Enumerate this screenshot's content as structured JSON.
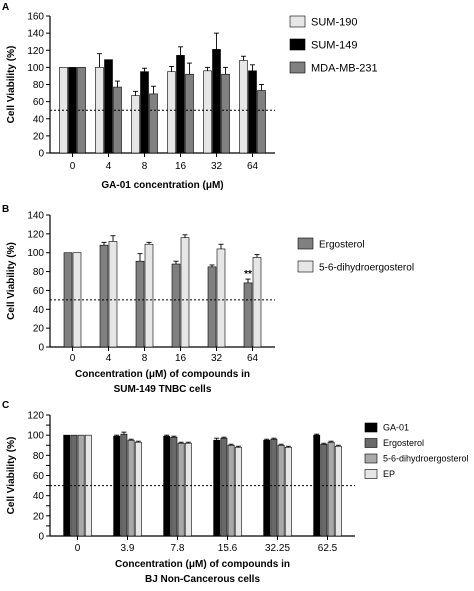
{
  "chart_data": [
    {
      "panel": "A",
      "type": "bar",
      "ylabel": "Cell Viability (%)",
      "xlabel": "GA-01 concentration (μM)",
      "ylim": [
        0,
        160
      ],
      "yticks": [
        0,
        20,
        40,
        60,
        80,
        100,
        120,
        140,
        160
      ],
      "categories": [
        "0",
        "4",
        "8",
        "16",
        "32",
        "64"
      ],
      "reference_line": 50,
      "legend_position": "right",
      "series": [
        {
          "name": "SUM-190",
          "color": "#e6e6e6",
          "values": [
            100,
            100,
            67,
            95,
            96,
            108
          ],
          "errors": [
            0,
            16,
            5,
            6,
            4,
            5
          ]
        },
        {
          "name": "SUM-149",
          "color": "#000000",
          "values": [
            100,
            109,
            95,
            114,
            121,
            96
          ],
          "errors": [
            0,
            0,
            4,
            10,
            19,
            7
          ]
        },
        {
          "name": "MDA-MB-231",
          "color": "#808080",
          "values": [
            100,
            77,
            69,
            92,
            92,
            73
          ],
          "errors": [
            0,
            7,
            9,
            13,
            8,
            7
          ]
        }
      ],
      "annotations": []
    },
    {
      "panel": "B",
      "type": "bar",
      "ylabel": "Cell Viability (%)",
      "xlabel": "Concentration (μM) of compounds in",
      "xlabel2": "SUM-149 TNBC cells",
      "ylim": [
        0,
        140
      ],
      "yticks": [
        0,
        20,
        40,
        60,
        80,
        100,
        120,
        140
      ],
      "categories": [
        "0",
        "4",
        "8",
        "16",
        "32",
        "64"
      ],
      "reference_line": 50,
      "legend_position": "right",
      "series": [
        {
          "name": "Ergosterol",
          "color": "#808080",
          "values": [
            100,
            108,
            91,
            88,
            85,
            68
          ],
          "errors": [
            0,
            3,
            8,
            3,
            2,
            4
          ]
        },
        {
          "name": "5-6-dihydroergosterol",
          "color": "#e6e6e6",
          "values": [
            100,
            112,
            109,
            116,
            104,
            95
          ],
          "errors": [
            0,
            6,
            2,
            3,
            5,
            3
          ]
        }
      ],
      "annotations": [
        {
          "text": "**",
          "category": "64",
          "series": "Ergosterol"
        }
      ]
    },
    {
      "panel": "C",
      "type": "bar",
      "ylabel": "Cell Viability (%)",
      "xlabel": "Concentration (μM) of compounds in",
      "xlabel2": "BJ Non-Cancerous cells",
      "ylim": [
        0,
        120
      ],
      "yticks": [
        0,
        10,
        20,
        30,
        40,
        50,
        60,
        70,
        80,
        90,
        100,
        110,
        120
      ],
      "categories": [
        "0",
        "3.9",
        "7.8",
        "15.6",
        "32.25",
        "62.5"
      ],
      "reference_line": 50,
      "legend_position": "right",
      "series": [
        {
          "name": "GA-01",
          "color": "#000000",
          "values": [
            100,
            99,
            99,
            95,
            95,
            100
          ],
          "errors": [
            0,
            1,
            1,
            2,
            1,
            1
          ]
        },
        {
          "name": "Ergosterol",
          "color": "#696969",
          "values": [
            100,
            101,
            98,
            97,
            96,
            91
          ],
          "errors": [
            0,
            2,
            1,
            1,
            1,
            1
          ]
        },
        {
          "name": "5-6-dihydroergosterol",
          "color": "#a9a9a9",
          "values": [
            100,
            95,
            92,
            90,
            90,
            93
          ],
          "errors": [
            0,
            1,
            1,
            1,
            1,
            1
          ]
        },
        {
          "name": "EP",
          "color": "#e6e6e6",
          "values": [
            100,
            93,
            92,
            88,
            88,
            89
          ],
          "errors": [
            0,
            1,
            1,
            1,
            1,
            1
          ]
        }
      ],
      "annotations": []
    }
  ]
}
